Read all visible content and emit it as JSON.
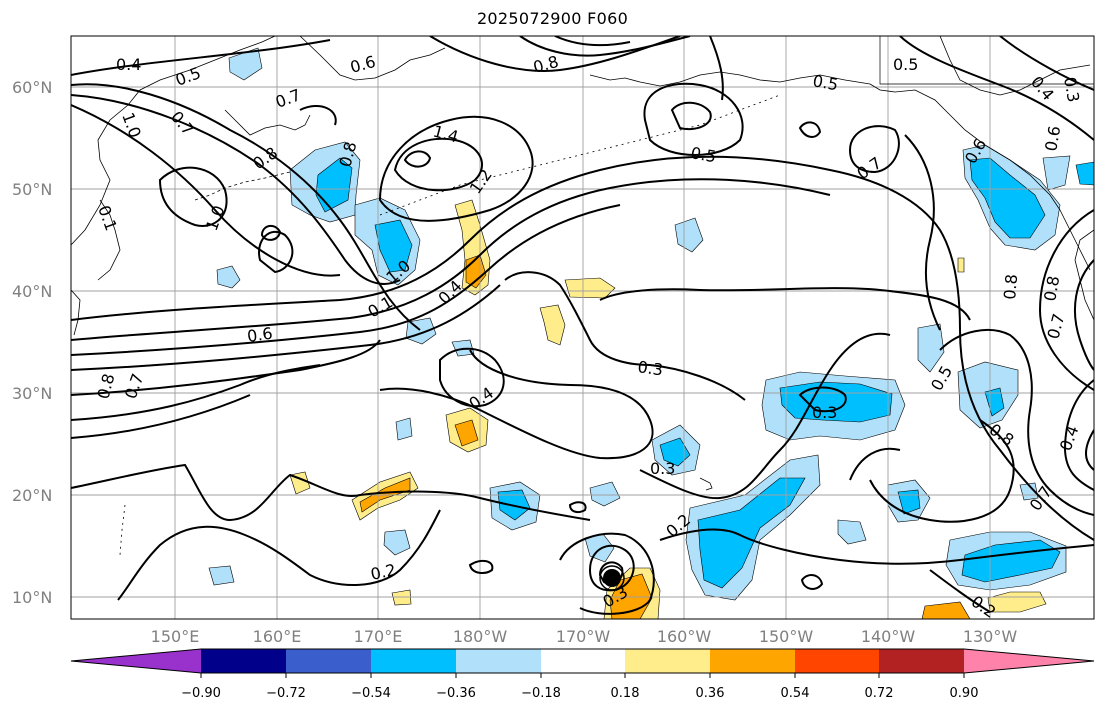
{
  "title": "2025072900 F060",
  "map": {
    "lat_labels": [
      "60°N",
      "50°N",
      "40°N",
      "30°N",
      "20°N",
      "10°N"
    ],
    "lon_labels": [
      "150°E",
      "160°E",
      "170°E",
      "180°W",
      "170°W",
      "160°W",
      "150°W",
      "140°W",
      "130°W"
    ],
    "contour_labels": [
      "0.4",
      "0.5",
      "0.6",
      "0.8",
      "0.5",
      "0.5",
      "0.3",
      "0.4",
      "1.0",
      "0.7",
      "0.7",
      "1.4",
      "0.5",
      "0.6",
      "0.8",
      "1.2",
      "0.8",
      "0.7",
      "0.6",
      "0.1",
      "1.0",
      "1.0",
      "0.4",
      "0.1",
      "0.6",
      "0.8",
      "0.7",
      "0.3",
      "0.4",
      "0.3",
      "0.8",
      "0.5",
      "0.3",
      "0.2",
      "0.7",
      "0.4",
      "0.2",
      "0.3",
      "0.2",
      "0.8",
      "0.8",
      "0.7"
    ],
    "line_color": "#000000",
    "grid_color": "#a0a0a0"
  },
  "colorbar": {
    "ticks": [
      "−0.90",
      "−0.72",
      "−0.54",
      "−0.36",
      "−0.18",
      "0.18",
      "0.36",
      "0.54",
      "0.72",
      "0.90"
    ],
    "colors": [
      "#9932cc",
      "#00008b",
      "#3a5fcd",
      "#00bfff",
      "#b0e0fa",
      "#ffffff",
      "#ffec8b",
      "#ffa500",
      "#ff4500",
      "#b22222",
      "#ff82ab"
    ]
  }
}
